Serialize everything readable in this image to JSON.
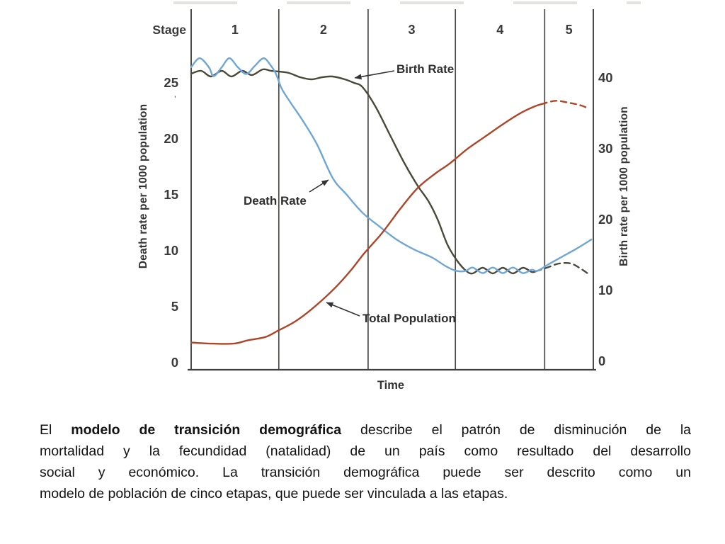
{
  "chart": {
    "stage_header_label": "Stage"
  },
  "chart_data": {
    "type": "line",
    "xlabel": "Time",
    "x_unit": "percent of qualitative time axis (0-100)",
    "left_axis": {
      "label": "Death rate per 1000 population",
      "ticks": [
        25,
        20,
        15,
        10,
        5,
        0
      ],
      "range": [
        0,
        31
      ]
    },
    "right_axis": {
      "label": "Birth rate per 1000 population",
      "ticks": [
        40,
        30,
        20,
        10,
        0
      ],
      "range": [
        0,
        43
      ]
    },
    "stages": [
      "1",
      "2",
      "3",
      "4",
      "5"
    ],
    "stage_boundaries_pct": [
      0,
      21.8,
      44,
      65.7,
      87.9,
      100
    ],
    "grid": "vertical stage-boundary lines only",
    "legend": "inline annotations with arrows",
    "series": [
      {
        "id": "birth-rate",
        "name": "Birth Rate",
        "axis": "right",
        "render_scale": "right",
        "color": "#4a4839",
        "style": "solid, dashed projection in stage 5",
        "points": [
          [
            0,
            40.6
          ],
          [
            2.5,
            41.0
          ],
          [
            4.9,
            40.2
          ],
          [
            7.6,
            41.0
          ],
          [
            10,
            40.2
          ],
          [
            12.7,
            41.0
          ],
          [
            15.1,
            40.4
          ],
          [
            17.8,
            41.2
          ],
          [
            19.9,
            41.0
          ],
          [
            21.8,
            40.9
          ],
          [
            24.3,
            40.7
          ],
          [
            27.1,
            40.1
          ],
          [
            29.9,
            39.8
          ],
          [
            32.6,
            40.1
          ],
          [
            35.2,
            40.2
          ],
          [
            38.2,
            39.8
          ],
          [
            40.5,
            39.3
          ],
          [
            42.6,
            38.7
          ],
          [
            45.8,
            36.0
          ],
          [
            49.3,
            32.1
          ],
          [
            52.8,
            28.2
          ],
          [
            56.3,
            24.8
          ],
          [
            59,
            22.6
          ],
          [
            61.3,
            20.0
          ],
          [
            63.7,
            16.5
          ],
          [
            66,
            14.3
          ],
          [
            68.3,
            12.8
          ],
          [
            70,
            12.4
          ],
          [
            72.5,
            13.2
          ],
          [
            75,
            12.4
          ],
          [
            77.5,
            13.2
          ],
          [
            80,
            12.4
          ],
          [
            82.5,
            13.2
          ],
          [
            84.7,
            12.6
          ],
          [
            85.7,
            12.7
          ]
        ],
        "dashed_points": [
          [
            85.7,
            12.7
          ],
          [
            88.4,
            13.2
          ],
          [
            91.5,
            13.8
          ],
          [
            94.4,
            13.8
          ],
          [
            96.8,
            13.1
          ],
          [
            99.1,
            12.2
          ]
        ]
      },
      {
        "id": "death-rate",
        "name": "Death Rate",
        "axis": "left",
        "render_scale": "left",
        "color": "#6ea6d6",
        "style": "solid",
        "points": [
          [
            0,
            26.4
          ],
          [
            2.1,
            27.2
          ],
          [
            4.4,
            26.4
          ],
          [
            5.6,
            25.6
          ],
          [
            7.6,
            26.4
          ],
          [
            9.5,
            27.2
          ],
          [
            11.6,
            26.4
          ],
          [
            13.7,
            25.8
          ],
          [
            15.8,
            26.5
          ],
          [
            18,
            27.2
          ],
          [
            19.7,
            26.6
          ],
          [
            21.1,
            25.8
          ],
          [
            22.5,
            24.5
          ],
          [
            24.6,
            23.3
          ],
          [
            27.8,
            21.6
          ],
          [
            31.3,
            19.5
          ],
          [
            35.2,
            16.5
          ],
          [
            38.7,
            15.0
          ],
          [
            42.6,
            13.4
          ],
          [
            46.7,
            12.2
          ],
          [
            51.1,
            11.0
          ],
          [
            55.5,
            10.1
          ],
          [
            59.9,
            9.4
          ],
          [
            63.4,
            8.6
          ],
          [
            66,
            8.2
          ],
          [
            68.3,
            8.2
          ],
          [
            70,
            8.5
          ],
          [
            72.5,
            8.0
          ],
          [
            75,
            8.5
          ],
          [
            77.5,
            8.0
          ],
          [
            80,
            8.5
          ],
          [
            82.5,
            8.0
          ],
          [
            84.7,
            8.3
          ],
          [
            86.1,
            8.2
          ],
          [
            88.9,
            8.8
          ],
          [
            92.4,
            9.5
          ],
          [
            95.9,
            10.2
          ],
          [
            99.5,
            11.0
          ]
        ]
      },
      {
        "id": "total-population",
        "name": "Total Population",
        "axis": "qualitative (population size, no numeric axis)",
        "render_scale": "left",
        "color": "#ae4529",
        "style": "solid, dashed projection in stage 5",
        "points": [
          [
            0,
            1.8
          ],
          [
            5.3,
            1.7
          ],
          [
            10.6,
            1.7
          ],
          [
            14.1,
            2.0
          ],
          [
            18.5,
            2.3
          ],
          [
            21.8,
            2.9
          ],
          [
            25.5,
            3.6
          ],
          [
            29,
            4.5
          ],
          [
            32.6,
            5.6
          ],
          [
            36.1,
            6.8
          ],
          [
            39.6,
            8.2
          ],
          [
            43.1,
            9.8
          ],
          [
            47.5,
            11.6
          ],
          [
            51.9,
            13.7
          ],
          [
            56.3,
            15.6
          ],
          [
            60.7,
            16.9
          ],
          [
            64.3,
            17.8
          ],
          [
            68.7,
            19.1
          ],
          [
            73.1,
            20.2
          ],
          [
            77.5,
            21.3
          ],
          [
            81.9,
            22.3
          ],
          [
            85.4,
            22.9
          ],
          [
            87.1,
            23.1
          ]
        ],
        "dashed_points": [
          [
            87.1,
            23.1
          ],
          [
            90.7,
            23.4
          ],
          [
            94.2,
            23.2
          ],
          [
            96.8,
            23.0
          ],
          [
            98.9,
            22.7
          ]
        ]
      }
    ]
  },
  "paragraph": {
    "line1_prefix": "El ",
    "line1_bold": "modelo de transición demográfica",
    "line1_rest": " describe el patrón de disminución de la",
    "line2": "mortalidad y la fecundidad (natalidad) de un país como resultado del desarrollo",
    "line3": "social y económico. La transición demográfica puede ser descrito como un",
    "line4": "modelo de población de cinco etapas, que puede ser vinculada a las etapas."
  }
}
